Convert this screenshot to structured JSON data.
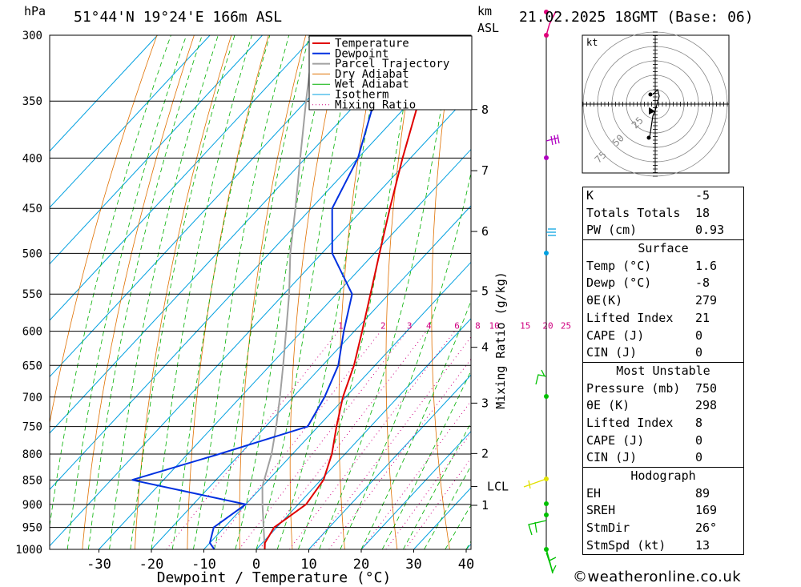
{
  "header": {
    "pressure_unit": "hPa",
    "location": "51°44'N  19°24'E  166m  ASL",
    "height_unit_line1": "km",
    "height_unit_line2": "ASL",
    "datetime": "21.02.2025  18GMT  (Base: 06)"
  },
  "chart_data": {
    "type": "skew-t log-p",
    "xlabel": "Dewpoint / Temperature (°C)",
    "ylabel": "hPa",
    "x_ticks": [
      -30,
      -20,
      -10,
      0,
      10,
      20,
      30,
      40
    ],
    "pressure_levels": [
      300,
      350,
      400,
      450,
      500,
      550,
      600,
      650,
      700,
      750,
      800,
      850,
      900,
      950,
      1000
    ],
    "height_km_ticks": [
      {
        "label": "8",
        "p": 357
      },
      {
        "label": "7",
        "p": 412
      },
      {
        "label": "6",
        "p": 475
      },
      {
        "label": "5",
        "p": 546
      },
      {
        "label": "4",
        "p": 623
      },
      {
        "label": "3",
        "p": 710
      },
      {
        "label": "2",
        "p": 799
      },
      {
        "label": "LCL",
        "p": 863
      },
      {
        "label": "1",
        "p": 902
      }
    ],
    "mixing_ratio_title": "Mixing Ratio (g/kg)",
    "mixing_ratio_lines": [
      1,
      2,
      3,
      4,
      6,
      8,
      10,
      15,
      20,
      25
    ],
    "legend": [
      "Temperature",
      "Dewpoint",
      "Parcel Trajectory",
      "Dry Adiabat",
      "Wet Adiabat",
      "Isotherm",
      "Mixing Ratio"
    ],
    "colors": {
      "temperature": "#e00000",
      "dewpoint": "#0030e0",
      "parcel": "#a0a0a0",
      "dry_adiabat": "#e07000",
      "wet_adiabat": "#00b000",
      "isotherm": "#00a0e0",
      "mixing_ratio": "#d00080"
    },
    "temperature": [
      {
        "p": 1000,
        "t": 1.6
      },
      {
        "p": 985,
        "t": 0.5
      },
      {
        "p": 950,
        "t": -0.5
      },
      {
        "p": 925,
        "t": 0.5
      },
      {
        "p": 900,
        "t": 1.5
      },
      {
        "p": 850,
        "t": 0.5
      },
      {
        "p": 800,
        "t": -2.5
      },
      {
        "p": 750,
        "t": -6.5
      },
      {
        "p": 700,
        "t": -10.5
      },
      {
        "p": 650,
        "t": -14
      },
      {
        "p": 600,
        "t": -18.5
      },
      {
        "p": 550,
        "t": -23.5
      },
      {
        "p": 500,
        "t": -29
      },
      {
        "p": 450,
        "t": -35
      },
      {
        "p": 400,
        "t": -41.5
      },
      {
        "p": 350,
        "t": -48.5
      },
      {
        "p": 300,
        "t": -56
      }
    ],
    "dewpoint": [
      {
        "p": 1000,
        "t": -8
      },
      {
        "p": 985,
        "t": -10
      },
      {
        "p": 950,
        "t": -12
      },
      {
        "p": 900,
        "t": -10
      },
      {
        "p": 850,
        "t": -36
      },
      {
        "p": 800,
        "t": -24
      },
      {
        "p": 750,
        "t": -12
      },
      {
        "p": 700,
        "t": -14
      },
      {
        "p": 650,
        "t": -17
      },
      {
        "p": 600,
        "t": -22
      },
      {
        "p": 550,
        "t": -27
      },
      {
        "p": 500,
        "t": -38
      },
      {
        "p": 450,
        "t": -46
      },
      {
        "p": 400,
        "t": -50
      },
      {
        "p": 350,
        "t": -57
      },
      {
        "p": 300,
        "t": -65
      }
    ],
    "parcel": [
      {
        "p": 1000,
        "t": 1.6
      },
      {
        "p": 950,
        "t": -2.5
      },
      {
        "p": 900,
        "t": -6.8
      },
      {
        "p": 863,
        "t": -10
      },
      {
        "p": 800,
        "t": -14
      },
      {
        "p": 750,
        "t": -18
      },
      {
        "p": 700,
        "t": -22.5
      },
      {
        "p": 650,
        "t": -27.5
      },
      {
        "p": 600,
        "t": -33
      },
      {
        "p": 550,
        "t": -39
      },
      {
        "p": 500,
        "t": -46
      },
      {
        "p": 450,
        "t": -53
      },
      {
        "p": 400,
        "t": -61
      },
      {
        "p": 350,
        "t": -70
      },
      {
        "p": 310,
        "t": -78
      }
    ]
  },
  "hodograph": {
    "unit": "kt",
    "ring_labels": [
      "25",
      "50",
      "75"
    ]
  },
  "indices": [
    {
      "label": "K",
      "value": "-5"
    },
    {
      "label": "Totals Totals",
      "value": "18"
    },
    {
      "label": "PW (cm)",
      "value": "0.93"
    }
  ],
  "surface": {
    "title": "Surface",
    "rows": [
      {
        "label": "Temp (°C)",
        "value": "1.6"
      },
      {
        "label": "Dewp (°C)",
        "value": "-8"
      },
      {
        "label": "θE(K)",
        "value": "279"
      },
      {
        "label": "Lifted Index",
        "value": "21"
      },
      {
        "label": "CAPE (J)",
        "value": "0"
      },
      {
        "label": "CIN (J)",
        "value": "0"
      }
    ]
  },
  "most_unstable": {
    "title": "Most Unstable",
    "rows": [
      {
        "label": "Pressure (mb)",
        "value": "750"
      },
      {
        "label": "θE (K)",
        "value": "298"
      },
      {
        "label": "Lifted Index",
        "value": "8"
      },
      {
        "label": "CAPE (J)",
        "value": "0"
      },
      {
        "label": "CIN (J)",
        "value": "0"
      }
    ]
  },
  "hodograph_params": {
    "title": "Hodograph",
    "rows": [
      {
        "label": "EH",
        "value": "89"
      },
      {
        "label": "SREH",
        "value": "169"
      },
      {
        "label": "StmDir",
        "value": "26°"
      },
      {
        "label": "StmSpd (kt)",
        "value": "13"
      }
    ]
  },
  "footer": "©weatheronline.co.uk"
}
